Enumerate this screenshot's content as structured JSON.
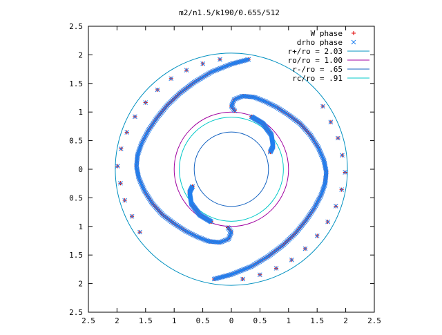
{
  "chart_data": {
    "type": "scatter",
    "title": "m2/n1.5/k190/0.655/512",
    "xlabel": "",
    "ylabel": "",
    "xlim": [
      -2.5,
      2.5
    ],
    "ylim": [
      -2.5,
      2.5
    ],
    "xticks": [
      "2.5",
      "2",
      "1.5",
      "1",
      "0.5",
      "0",
      "0.5",
      "1",
      "1.5",
      "2",
      "2.5"
    ],
    "yticks": [
      "2.5",
      "2",
      "1.5",
      "1",
      "0.5",
      "0",
      "0.5",
      "1",
      "1.5",
      "2",
      "2.5"
    ],
    "grid": false,
    "legend_position": "top-right",
    "circles": [
      {
        "name": "r+/ro = 2.03",
        "radius": 2.03,
        "color": "#0090c0"
      },
      {
        "name": "ro/ro = 1.00",
        "radius": 1.0,
        "color": "#a000a0"
      },
      {
        "name": "r-/ro = .65",
        "radius": 0.65,
        "color": "#1060c0"
      },
      {
        "name": "rc/ro = .91",
        "radius": 0.91,
        "color": "#00c8c8"
      }
    ],
    "series": [
      {
        "name": "W phase",
        "marker": "+",
        "color": "#e00000",
        "arms": [
          {
            "points": [
              [
                0.06,
                1.02
              ],
              [
                0.0,
                1.1
              ],
              [
                0.05,
                1.22
              ],
              [
                0.2,
                1.28
              ],
              [
                0.4,
                1.26
              ],
              [
                0.6,
                1.18
              ],
              [
                0.8,
                1.08
              ],
              [
                1.0,
                0.95
              ],
              [
                1.2,
                0.8
              ],
              [
                1.38,
                0.6
              ],
              [
                1.52,
                0.38
              ],
              [
                1.62,
                0.15
              ],
              [
                1.66,
                -0.05
              ],
              [
                1.64,
                -0.25
              ],
              [
                1.57,
                -0.45
              ],
              [
                1.45,
                -0.68
              ],
              [
                1.3,
                -0.9
              ],
              [
                1.12,
                -1.12
              ],
              [
                0.9,
                -1.33
              ],
              [
                0.65,
                -1.52
              ],
              [
                0.35,
                -1.7
              ],
              [
                0.0,
                -1.84
              ],
              [
                -0.3,
                -1.92
              ]
            ],
            "count": 240
          },
          {
            "points": [
              [
                -0.06,
                -1.02
              ],
              [
                0.0,
                -1.1
              ],
              [
                -0.05,
                -1.22
              ],
              [
                -0.2,
                -1.28
              ],
              [
                -0.4,
                -1.26
              ],
              [
                -0.6,
                -1.18
              ],
              [
                -0.8,
                -1.08
              ],
              [
                -1.0,
                -0.95
              ],
              [
                -1.2,
                -0.8
              ],
              [
                -1.38,
                -0.6
              ],
              [
                -1.52,
                -0.38
              ],
              [
                -1.62,
                -0.15
              ],
              [
                -1.66,
                0.05
              ],
              [
                -1.64,
                0.25
              ],
              [
                -1.57,
                0.45
              ],
              [
                -1.45,
                0.68
              ],
              [
                -1.3,
                0.9
              ],
              [
                -1.12,
                1.12
              ],
              [
                -0.9,
                1.33
              ],
              [
                -0.65,
                1.52
              ],
              [
                -0.35,
                1.7
              ],
              [
                0.0,
                1.84
              ],
              [
                0.3,
                1.92
              ]
            ],
            "count": 240
          },
          {
            "points": [
              [
                0.35,
                0.92
              ],
              [
                0.55,
                0.8
              ],
              [
                0.7,
                0.6
              ],
              [
                0.73,
                0.4
              ],
              [
                0.68,
                0.3
              ]
            ],
            "count": 60
          },
          {
            "points": [
              [
                -0.35,
                -0.92
              ],
              [
                -0.55,
                -0.8
              ],
              [
                -0.7,
                -0.6
              ],
              [
                -0.73,
                -0.4
              ],
              [
                -0.68,
                -0.3
              ]
            ],
            "count": 60
          },
          {
            "points": [
              [
                1.6,
                1.1
              ],
              [
                1.85,
                0.6
              ],
              [
                1.95,
                0.2
              ],
              [
                2.0,
                0.0
              ],
              [
                1.9,
                -0.5
              ],
              [
                1.7,
                -0.9
              ],
              [
                1.4,
                -1.3
              ],
              [
                1.0,
                -1.63
              ],
              [
                0.6,
                -1.82
              ],
              [
                0.2,
                -1.92
              ]
            ],
            "count": 14
          },
          {
            "points": [
              [
                -1.6,
                -1.1
              ],
              [
                -1.85,
                -0.6
              ],
              [
                -1.95,
                -0.2
              ],
              [
                -2.0,
                0.0
              ],
              [
                -1.9,
                0.5
              ],
              [
                -1.7,
                0.9
              ],
              [
                -1.4,
                1.3
              ],
              [
                -1.0,
                1.63
              ],
              [
                -0.6,
                1.82
              ],
              [
                -0.2,
                1.92
              ]
            ],
            "count": 14
          }
        ]
      },
      {
        "name": "drho phase",
        "marker": "x",
        "color": "#2080f0",
        "arms": [
          {
            "points": [
              [
                0.06,
                1.02
              ],
              [
                0.0,
                1.1
              ],
              [
                0.05,
                1.22
              ],
              [
                0.2,
                1.28
              ],
              [
                0.4,
                1.26
              ],
              [
                0.6,
                1.18
              ],
              [
                0.8,
                1.08
              ],
              [
                1.0,
                0.95
              ],
              [
                1.2,
                0.8
              ],
              [
                1.38,
                0.6
              ],
              [
                1.52,
                0.38
              ],
              [
                1.62,
                0.15
              ],
              [
                1.66,
                -0.05
              ],
              [
                1.64,
                -0.25
              ],
              [
                1.57,
                -0.45
              ],
              [
                1.45,
                -0.68
              ],
              [
                1.3,
                -0.9
              ],
              [
                1.12,
                -1.12
              ],
              [
                0.9,
                -1.33
              ],
              [
                0.65,
                -1.52
              ],
              [
                0.35,
                -1.7
              ],
              [
                0.0,
                -1.84
              ],
              [
                -0.3,
                -1.92
              ]
            ],
            "count": 240
          },
          {
            "points": [
              [
                -0.06,
                -1.02
              ],
              [
                0.0,
                -1.1
              ],
              [
                -0.05,
                -1.22
              ],
              [
                -0.2,
                -1.28
              ],
              [
                -0.4,
                -1.26
              ],
              [
                -0.6,
                -1.18
              ],
              [
                -0.8,
                -1.08
              ],
              [
                -1.0,
                -0.95
              ],
              [
                -1.2,
                -0.8
              ],
              [
                -1.38,
                -0.6
              ],
              [
                -1.52,
                -0.38
              ],
              [
                -1.62,
                -0.15
              ],
              [
                -1.66,
                0.05
              ],
              [
                -1.64,
                0.25
              ],
              [
                -1.57,
                0.45
              ],
              [
                -1.45,
                0.68
              ],
              [
                -1.3,
                0.9
              ],
              [
                -1.12,
                1.12
              ],
              [
                -0.9,
                1.33
              ],
              [
                -0.65,
                1.52
              ],
              [
                -0.35,
                1.7
              ],
              [
                0.0,
                1.84
              ],
              [
                0.3,
                1.92
              ]
            ],
            "count": 240
          },
          {
            "points": [
              [
                0.35,
                0.92
              ],
              [
                0.55,
                0.8
              ],
              [
                0.7,
                0.6
              ],
              [
                0.73,
                0.4
              ],
              [
                0.68,
                0.3
              ]
            ],
            "count": 60
          },
          {
            "points": [
              [
                -0.35,
                -0.92
              ],
              [
                -0.55,
                -0.8
              ],
              [
                -0.7,
                -0.6
              ],
              [
                -0.73,
                -0.4
              ],
              [
                -0.68,
                -0.3
              ]
            ],
            "count": 60
          },
          {
            "points": [
              [
                1.6,
                1.1
              ],
              [
                1.85,
                0.6
              ],
              [
                1.95,
                0.2
              ],
              [
                2.0,
                0.0
              ],
              [
                1.9,
                -0.5
              ],
              [
                1.7,
                -0.9
              ],
              [
                1.4,
                -1.3
              ],
              [
                1.0,
                -1.63
              ],
              [
                0.6,
                -1.82
              ],
              [
                0.2,
                -1.92
              ]
            ],
            "count": 14
          },
          {
            "points": [
              [
                -1.6,
                -1.1
              ],
              [
                -1.85,
                -0.6
              ],
              [
                -1.95,
                -0.2
              ],
              [
                -2.0,
                0.0
              ],
              [
                -1.9,
                0.5
              ],
              [
                -1.7,
                0.9
              ],
              [
                -1.4,
                1.3
              ],
              [
                -1.0,
                1.63
              ],
              [
                -0.6,
                1.82
              ],
              [
                -0.2,
                1.92
              ]
            ],
            "count": 14
          }
        ]
      }
    ]
  }
}
